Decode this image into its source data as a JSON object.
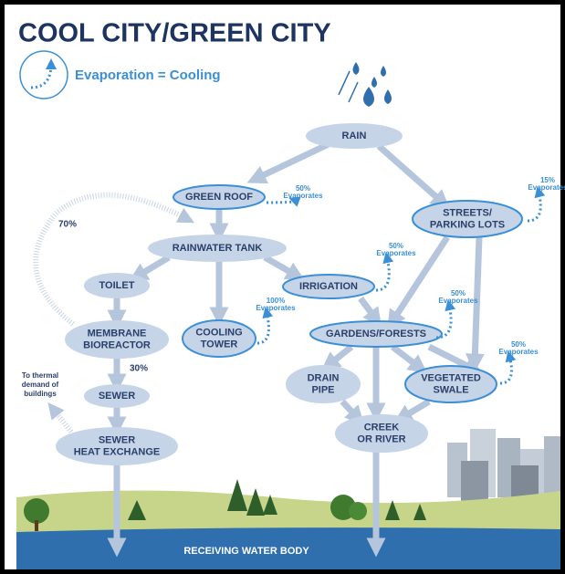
{
  "title": "COOL CITY/GREEN CITY",
  "legend": "Evaporation = Cooling",
  "nodes": [
    {
      "label": [
        "RAIN"
      ]
    },
    {
      "label": [
        "GREEN ROOF"
      ]
    },
    {
      "label": [
        "STREETS/",
        "PARKING LOTS"
      ]
    },
    {
      "label": [
        "RAINWATER TANK"
      ]
    },
    {
      "label": [
        "TOILET"
      ]
    },
    {
      "label": [
        "IRRIGATION"
      ]
    },
    {
      "label": [
        "MEMBRANE",
        "BIOREACTOR"
      ]
    },
    {
      "label": [
        "COOLING",
        "TOWER"
      ]
    },
    {
      "label": [
        "GARDENS/FORESTS"
      ]
    },
    {
      "label": [
        "SEWER"
      ]
    },
    {
      "label": [
        "DRAIN",
        "PIPE"
      ]
    },
    {
      "label": [
        "VEGETATED",
        "SWALE"
      ]
    },
    {
      "label": [
        "CREEK",
        "OR RIVER"
      ]
    },
    {
      "label": [
        "SEWER",
        "HEAT EXCHANGE"
      ]
    }
  ],
  "evaporation": [
    {
      "percent": "50%",
      "text": "Evaporates"
    },
    {
      "percent": "15%",
      "text": "Evaporates"
    },
    {
      "percent": "50%",
      "text": "Evaporates"
    },
    {
      "percent": "100%",
      "text": "Evaporates"
    },
    {
      "percent": "50%",
      "text": "Evaporates"
    },
    {
      "percent": "50%",
      "text": "Evaporates"
    }
  ],
  "flow_labels": [
    "70%",
    "30%"
  ],
  "note": [
    "To thermal",
    "demand of",
    "buildings"
  ],
  "water_body": "RECEIVING WATER BODY"
}
